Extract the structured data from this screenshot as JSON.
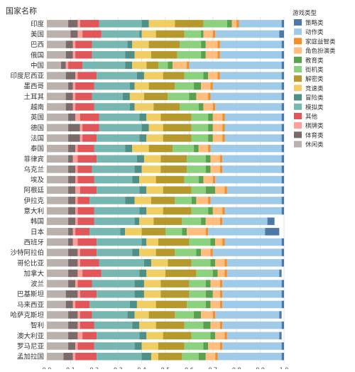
{
  "chart_data": {
    "type": "bar",
    "orientation": "horizontal",
    "stacked": true,
    "normalized": true,
    "title": "",
    "ylabel": "国家名称",
    "xlabel": "",
    "xlim": [
      0,
      1
    ],
    "x_ticks": [
      "0.0",
      "0.1",
      "0.2",
      "0.3",
      "0.4",
      "0.5",
      "0.6",
      "0.7",
      "0.8",
      "0.9",
      "1.0"
    ],
    "grid": "vertical",
    "legend": {
      "title": "游戏类型",
      "position": "right"
    },
    "categories": [
      "印度",
      "美国",
      "巴西",
      "俄国",
      "中国",
      "印度尼西亚",
      "墨西哥",
      "土耳其",
      "越南",
      "英国",
      "德国",
      "法国",
      "泰国",
      "菲律宾",
      "乌克兰",
      "埃及",
      "阿根廷",
      "伊拉克",
      "意大利",
      "韩国",
      "日本",
      "西班牙",
      "沙特阿拉伯",
      "哥伦比亚",
      "加拿大",
      "波兰",
      "巴基斯坦",
      "马来西亚",
      "哈萨克斯坦",
      "智利",
      "澳大利亚",
      "罗马尼亚",
      "孟加拉国"
    ],
    "series": [
      {
        "name": "休闲类",
        "color": "#bab0ac",
        "values": [
          0.09,
          0.1,
          0.08,
          0.08,
          0.06,
          0.08,
          0.09,
          0.08,
          0.08,
          0.09,
          0.09,
          0.09,
          0.09,
          0.09,
          0.09,
          0.09,
          0.09,
          0.09,
          0.09,
          0.09,
          0.09,
          0.09,
          0.09,
          0.09,
          0.09,
          0.09,
          0.08,
          0.08,
          0.09,
          0.09,
          0.09,
          0.09,
          0.07
        ]
      },
      {
        "name": "体育类",
        "color": "#7a6a6a",
        "values": [
          0.04,
          0.03,
          0.03,
          0.03,
          0.02,
          0.04,
          0.02,
          0.03,
          0.03,
          0.03,
          0.05,
          0.05,
          0.03,
          0.02,
          0.03,
          0.03,
          0.03,
          0.03,
          0.03,
          0.03,
          0.02,
          0.02,
          0.04,
          0.04,
          0.04,
          0.03,
          0.05,
          0.03,
          0.04,
          0.04,
          0.04,
          0.03,
          0.04
        ]
      },
      {
        "name": "棋牌类",
        "color": "#ff9d9a",
        "values": [
          0.01,
          0.02,
          0.01,
          0.01,
          0.01,
          0.01,
          0.01,
          0.01,
          0.01,
          0.02,
          0.01,
          0.01,
          0.01,
          0.02,
          0.01,
          0.01,
          0.02,
          0.01,
          0.01,
          0.01,
          0.01,
          0.02,
          0.01,
          0.01,
          0.02,
          0.01,
          0.01,
          0.01,
          0.01,
          0.01,
          0.02,
          0.01,
          0.01
        ]
      },
      {
        "name": "其他",
        "color": "#e15759",
        "values": [
          0.08,
          0.08,
          0.07,
          0.07,
          0.06,
          0.08,
          0.08,
          0.07,
          0.08,
          0.08,
          0.07,
          0.06,
          0.07,
          0.08,
          0.06,
          0.07,
          0.07,
          0.05,
          0.07,
          0.07,
          0.06,
          0.08,
          0.07,
          0.08,
          0.08,
          0.06,
          0.07,
          0.06,
          0.05,
          0.06,
          0.06,
          0.07,
          0.09
        ]
      },
      {
        "name": "模拟类",
        "color": "#76b7b2",
        "values": [
          0.18,
          0.16,
          0.15,
          0.14,
          0.18,
          0.17,
          0.15,
          0.13,
          0.15,
          0.17,
          0.18,
          0.18,
          0.13,
          0.17,
          0.18,
          0.16,
          0.18,
          0.15,
          0.19,
          0.17,
          0.13,
          0.19,
          0.15,
          0.19,
          0.16,
          0.18,
          0.16,
          0.17,
          0.15,
          0.16,
          0.18,
          0.17,
          0.19
        ]
      },
      {
        "name": "冒险类",
        "color": "#4e8f86",
        "values": [
          0.03,
          0.01,
          0.02,
          0.04,
          0.03,
          0.03,
          0.02,
          0.03,
          0.02,
          0.03,
          0.03,
          0.03,
          0.03,
          0.03,
          0.03,
          0.03,
          0.03,
          0.04,
          0.03,
          0.02,
          0.02,
          0.02,
          0.03,
          0.03,
          0.03,
          0.04,
          0.04,
          0.03,
          0.03,
          0.03,
          0.03,
          0.03,
          0.04
        ]
      },
      {
        "name": "竞速类",
        "color": "#f1ce63",
        "values": [
          0.11,
          0.06,
          0.07,
          0.07,
          0.06,
          0.08,
          0.06,
          0.06,
          0.08,
          0.06,
          0.06,
          0.07,
          0.07,
          0.07,
          0.08,
          0.07,
          0.07,
          0.07,
          0.07,
          0.06,
          0.07,
          0.05,
          0.07,
          0.07,
          0.08,
          0.07,
          0.07,
          0.08,
          0.06,
          0.07,
          0.07,
          0.07,
          0.03
        ]
      },
      {
        "name": "解密类",
        "color": "#b6992d",
        "values": [
          0.12,
          0.12,
          0.13,
          0.11,
          0.05,
          0.09,
          0.11,
          0.1,
          0.11,
          0.13,
          0.12,
          0.12,
          0.1,
          0.11,
          0.11,
          0.12,
          0.12,
          0.1,
          0.12,
          0.12,
          0.1,
          0.13,
          0.08,
          0.1,
          0.13,
          0.12,
          0.12,
          0.13,
          0.11,
          0.12,
          0.12,
          0.11,
          0.1
        ]
      },
      {
        "name": "街机类",
        "color": "#8cd17d",
        "values": [
          0.1,
          0.07,
          0.09,
          0.1,
          0.04,
          0.08,
          0.08,
          0.09,
          0.08,
          0.07,
          0.07,
          0.07,
          0.09,
          0.08,
          0.08,
          0.06,
          0.06,
          0.07,
          0.07,
          0.08,
          0.07,
          0.09,
          0.09,
          0.08,
          0.07,
          0.07,
          0.07,
          0.08,
          0.08,
          0.08,
          0.08,
          0.08,
          0.07
        ]
      },
      {
        "name": "教育类",
        "color": "#59a14f",
        "values": [
          0.02,
          0.01,
          0.02,
          0.02,
          0.02,
          0.02,
          0.03,
          0.03,
          0.02,
          0.02,
          0.02,
          0.02,
          0.02,
          0.02,
          0.02,
          0.02,
          0.04,
          0.02,
          0.02,
          0.02,
          0.02,
          0.02,
          0.02,
          0.02,
          0.02,
          0.02,
          0.03,
          0.02,
          0.03,
          0.03,
          0.02,
          0.02,
          0.03
        ]
      },
      {
        "name": "角色扮演类",
        "color": "#ffbe7d",
        "values": [
          0.02,
          0.04,
          0.05,
          0.05,
          0.06,
          0.04,
          0.04,
          0.05,
          0.04,
          0.04,
          0.04,
          0.04,
          0.04,
          0.04,
          0.04,
          0.04,
          0.04,
          0.05,
          0.04,
          0.06,
          0.08,
          0.03,
          0.04,
          0.04,
          0.03,
          0.04,
          0.03,
          0.04,
          0.05,
          0.04,
          0.04,
          0.05,
          0.04
        ]
      },
      {
        "name": "家庭益智类",
        "color": "#f28e2b",
        "values": [
          0.01,
          0.01,
          0.01,
          0.01,
          0.01,
          0.01,
          0.01,
          0.01,
          0.01,
          0.01,
          0.01,
          0.01,
          0.01,
          0.01,
          0.01,
          0.01,
          0.01,
          0.01,
          0.01,
          0.01,
          0.01,
          0.01,
          0.01,
          0.01,
          0.01,
          0.01,
          0.01,
          0.01,
          0.01,
          0.01,
          0.01,
          0.01,
          0.01
        ]
      },
      {
        "name": "动作类",
        "color": "#a0cbe8",
        "values": [
          0.18,
          0.27,
          0.26,
          0.26,
          0.39,
          0.26,
          0.29,
          0.3,
          0.28,
          0.24,
          0.24,
          0.24,
          0.3,
          0.25,
          0.25,
          0.28,
          0.23,
          0.3,
          0.24,
          0.19,
          0.24,
          0.24,
          0.29,
          0.23,
          0.22,
          0.25,
          0.25,
          0.25,
          0.27,
          0.25,
          0.22,
          0.25,
          0.27
        ]
      },
      {
        "name": "策略类",
        "color": "#4e79a7",
        "values": [
          0.01,
          0.02,
          0.01,
          0.01,
          0.01,
          0.01,
          0.01,
          0.01,
          0.01,
          0.01,
          0.01,
          0.01,
          0.01,
          0.01,
          0.01,
          0.01,
          0.01,
          0.01,
          0.01,
          0.03,
          0.06,
          0.01,
          0.01,
          0.01,
          0.01,
          0.01,
          0.01,
          0.01,
          0.01,
          0.01,
          0.01,
          0.01,
          0.01
        ]
      }
    ],
    "legend_order": [
      "策略类",
      "动作类",
      "家庭益智类",
      "角色扮演类",
      "教育类",
      "街机类",
      "解密类",
      "竞速类",
      "冒险类",
      "模拟类",
      "其他",
      "棋牌类",
      "体育类",
      "休闲类"
    ]
  }
}
